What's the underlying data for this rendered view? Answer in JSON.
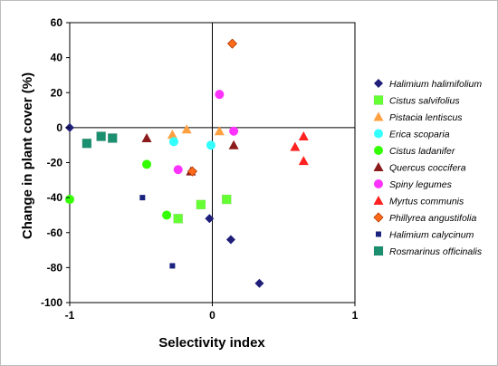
{
  "chart_data": {
    "type": "scatter",
    "title": "",
    "xlabel": "Selectivity index",
    "ylabel": "Change in plant cover (%)",
    "xlim": [
      -1,
      1
    ],
    "ylim": [
      -100,
      60
    ],
    "x_ticks": [
      "-1",
      "0",
      "1"
    ],
    "y_ticks": [
      "60",
      "40",
      "20",
      "0",
      "-20",
      "-40",
      "-60",
      "-80",
      "-100"
    ],
    "grid": false,
    "reference_lines": [
      0,
      0
    ],
    "legend_position": "right",
    "series": [
      {
        "name": "Halimium halimifolium",
        "marker": "diamond",
        "color": "#1f1f7a",
        "points": [
          [
            -1.0,
            0
          ],
          [
            -0.02,
            -52
          ],
          [
            0.13,
            -64
          ],
          [
            0.33,
            -89
          ]
        ]
      },
      {
        "name": "Cistus salvifolius",
        "marker": "square",
        "color": "#66ff33",
        "points": [
          [
            -0.24,
            -52
          ],
          [
            -0.08,
            -44
          ],
          [
            0.1,
            -41
          ]
        ]
      },
      {
        "name": "Pistacia lentiscus",
        "marker": "triangle",
        "color": "#ffa040",
        "points": [
          [
            -0.28,
            -4
          ],
          [
            -0.18,
            -1
          ],
          [
            0.05,
            -2
          ]
        ]
      },
      {
        "name": "Erica scoparia",
        "marker": "circle",
        "color": "#33ffff",
        "points": [
          [
            -0.27,
            -8
          ],
          [
            -0.01,
            -10
          ]
        ]
      },
      {
        "name": "Cistus ladanifer",
        "marker": "circle",
        "color": "#33ff00",
        "points": [
          [
            -1.0,
            -41
          ],
          [
            -0.46,
            -21
          ],
          [
            -0.32,
            -50
          ]
        ]
      },
      {
        "name": "Quercus coccifera",
        "marker": "triangle",
        "color": "#8b1a1a",
        "points": [
          [
            -0.46,
            -6
          ],
          [
            -0.15,
            -25
          ],
          [
            0.15,
            -10
          ]
        ]
      },
      {
        "name": "Spiny legumes",
        "marker": "circle",
        "color": "#ff33ff",
        "points": [
          [
            -0.24,
            -24
          ],
          [
            0.05,
            19
          ],
          [
            0.15,
            -2
          ]
        ]
      },
      {
        "name": "Myrtus communis",
        "marker": "triangle",
        "color": "#ff2020",
        "points": [
          [
            0.58,
            -11
          ],
          [
            0.64,
            -5
          ],
          [
            0.64,
            -19
          ]
        ]
      },
      {
        "name": "Phillyrea angustifolia",
        "marker": "diamond",
        "color": "#ff6a1a",
        "points": [
          [
            0.14,
            48
          ],
          [
            -0.14,
            -25
          ]
        ]
      },
      {
        "name": "Halimium calycinum",
        "marker": "square-small",
        "color": "#1a237e",
        "points": [
          [
            -0.49,
            -40
          ],
          [
            -0.28,
            -79
          ]
        ]
      },
      {
        "name": "Rosmarinus officinalis",
        "marker": "square",
        "color": "#1a9070",
        "points": [
          [
            -0.88,
            -9
          ],
          [
            -0.78,
            -5
          ],
          [
            -0.7,
            -6
          ]
        ]
      }
    ]
  }
}
